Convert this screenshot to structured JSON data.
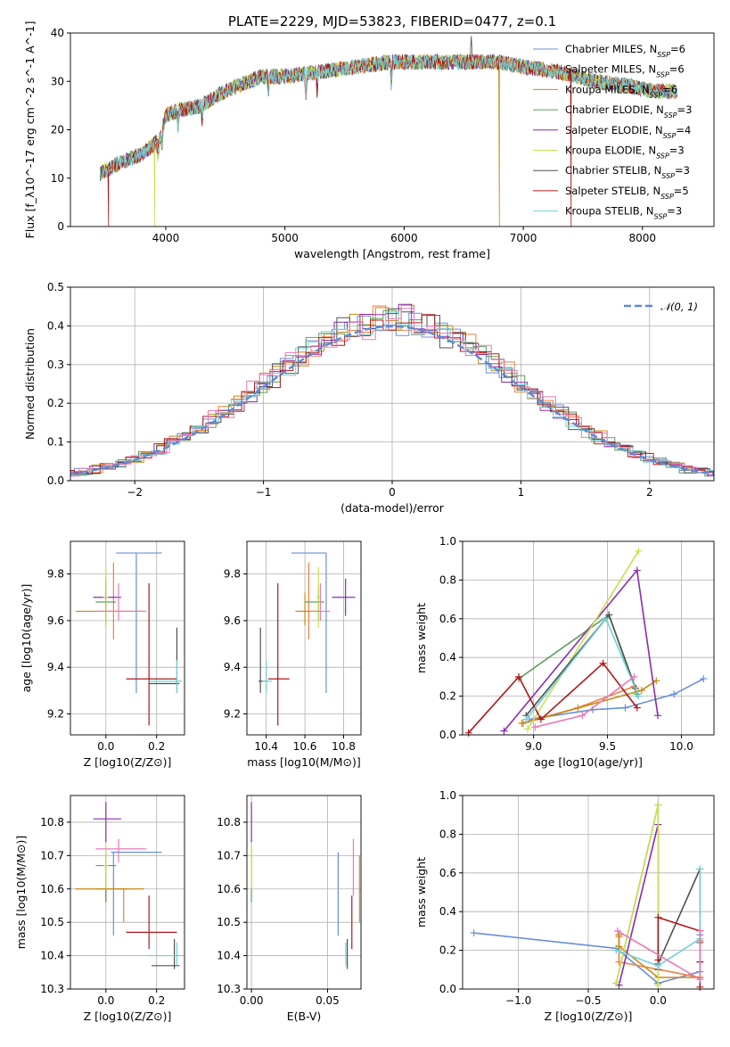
{
  "title": "PLATE=2229, MJD=53823, FIBERID=0477, z=0.1",
  "legend": [
    {
      "name": "Chabrier MILES, N_SSP=6",
      "color": "#6a8fd8"
    },
    {
      "name": "Salpeter MILES, N_SSP=6",
      "color": "#f07f3c"
    },
    {
      "name": "Kroupa MILES, N_SSP=6",
      "color": "#c88a14"
    },
    {
      "name": "Chabrier ELODIE, N_SSP=3",
      "color": "#5aa05a"
    },
    {
      "name": "Salpeter ELODIE, N_SSP=4",
      "color": "#8a2bb0"
    },
    {
      "name": "Kroupa ELODIE, N_SSP=3",
      "color": "#c8e050"
    },
    {
      "name": "Chabrier STELIB, N_SSP=3",
      "color": "#505050"
    },
    {
      "name": "Salpeter STELIB, N_SSP=5",
      "color": "#b01818"
    },
    {
      "name": "Kroupa STELIB, N_SSP=3",
      "color": "#70d0d8"
    }
  ],
  "chart_data": [
    {
      "id": "spectrum",
      "type": "line",
      "xlabel": "wavelength [Angstrom, rest frame]",
      "ylabel": "Flux [f_λ10^-17 erg cm^-2 s^-1 A^-1]",
      "xlim": [
        3200,
        8600
      ],
      "ylim": [
        0,
        40
      ],
      "xticks": [
        4000,
        5000,
        6000,
        7000,
        8000
      ],
      "yticks": [
        0,
        10,
        20,
        30,
        40
      ],
      "continuum": [
        [
          3450,
          11
        ],
        [
          3600,
          13
        ],
        [
          3800,
          15
        ],
        [
          3950,
          18
        ],
        [
          4000,
          23
        ],
        [
          4100,
          24
        ],
        [
          4300,
          25
        ],
        [
          4500,
          28
        ],
        [
          4800,
          31
        ],
        [
          5000,
          31
        ],
        [
          5300,
          32
        ],
        [
          5600,
          33
        ],
        [
          5900,
          34
        ],
        [
          6200,
          34
        ],
        [
          6500,
          34
        ],
        [
          6800,
          34
        ],
        [
          7000,
          33
        ],
        [
          7300,
          32
        ],
        [
          7600,
          30
        ],
        [
          7900,
          29
        ],
        [
          8100,
          28
        ],
        [
          8300,
          28
        ]
      ],
      "absorption_lines": [
        3934,
        3969,
        4102,
        4304,
        4861,
        5175,
        5270,
        5893
      ],
      "emission_lines": [
        [
          6563,
          40
        ],
        [
          6584,
          35
        ]
      ],
      "edge_drops": [
        {
          "series": 7,
          "x": 3520
        },
        {
          "series": 5,
          "x": 3910
        },
        {
          "series": 2,
          "x": 6800
        },
        {
          "series": 7,
          "x": 7400
        }
      ],
      "legend_placement": "right"
    },
    {
      "id": "residuals",
      "type": "histogram",
      "xlabel": "(data-model)/error",
      "ylabel": "Normed distribution",
      "xlim": [
        -2.5,
        2.5
      ],
      "ylim": [
        0,
        0.5
      ],
      "xticks": [
        -2,
        -1,
        0,
        1,
        2
      ],
      "yticks": [
        0.0,
        0.1,
        0.2,
        0.3,
        0.4,
        0.5
      ],
      "bin_width": 0.1,
      "reference_curve": "N(0,1)",
      "reference_label": "𝒩(0, 1)",
      "reference_color": "#5b8ad8",
      "legend_placement": "top-right"
    },
    {
      "id": "age_vs_Z",
      "type": "scatter",
      "xlabel": "Z [log10(Z/Z⊙)]",
      "ylabel": "age [log10(age/yr)]",
      "xlim": [
        -0.14,
        0.31
      ],
      "ylim": [
        9.11,
        9.94
      ],
      "xticks": [
        0.0,
        0.2
      ],
      "yticks": [
        9.2,
        9.4,
        9.6,
        9.8
      ],
      "points": [
        {
          "s": 0,
          "x": 0.12,
          "y": 9.89,
          "xe": [
            0.04,
            0.22
          ],
          "ye": [
            9.29,
            9.89
          ]
        },
        {
          "s": 1,
          "x": 0.03,
          "y": 9.64,
          "xe": [
            -0.04,
            0.14
          ],
          "ye": [
            9.52,
            9.85
          ]
        },
        {
          "s": 2,
          "x": 0.0,
          "y": 9.64,
          "xe": [
            -0.12,
            0.15
          ],
          "ye": [
            9.58,
            9.72
          ]
        },
        {
          "s": 3,
          "x": 0.0,
          "y": 9.68,
          "xe": [
            -0.04,
            0.04
          ],
          "ye": [
            9.6,
            9.74
          ]
        },
        {
          "s": 4,
          "x": 0.0,
          "y": 9.7,
          "xe": [
            -0.05,
            0.06
          ],
          "ye": [
            9.62,
            9.78
          ]
        },
        {
          "s": 5,
          "x": 0.0,
          "y": 9.7,
          "xe": [
            -0.01,
            0.01
          ],
          "ye": [
            9.57,
            9.83
          ]
        },
        {
          "s": 6,
          "x": 0.28,
          "y": 9.33,
          "xe": [
            0.17,
            0.29
          ],
          "ye": [
            9.29,
            9.57
          ]
        },
        {
          "s": 7,
          "x": 0.17,
          "y": 9.35,
          "xe": [
            0.08,
            0.28
          ],
          "ye": [
            9.15,
            9.76
          ]
        },
        {
          "s": 8,
          "x": 0.28,
          "y": 9.34,
          "xe": [
            0.17,
            0.3
          ],
          "ye": [
            9.29,
            9.43
          ]
        },
        {
          "s": 9,
          "x": 0.05,
          "y": 9.64,
          "xe": [
            -0.04,
            0.16
          ],
          "ye": [
            9.6,
            9.76
          ]
        }
      ]
    },
    {
      "id": "age_vs_mass",
      "type": "scatter",
      "xlabel": "mass [log10(M/M⊙)]",
      "ylabel": "",
      "xlim": [
        10.3,
        10.89
      ],
      "ylim": [
        9.11,
        9.94
      ],
      "xticks": [
        10.4,
        10.6,
        10.8
      ],
      "yticks": [
        9.2,
        9.4,
        9.6,
        9.8
      ],
      "points": [
        {
          "s": 0,
          "x": 10.71,
          "y": 9.89,
          "xe": [
            10.53,
            10.71
          ],
          "ye": [
            9.29,
            9.89
          ]
        },
        {
          "s": 1,
          "x": 10.62,
          "y": 9.64,
          "xe": [
            10.55,
            10.68
          ],
          "ye": [
            9.52,
            9.85
          ]
        },
        {
          "s": 2,
          "x": 10.6,
          "y": 9.64,
          "xe": [
            10.56,
            10.67
          ],
          "ye": [
            9.58,
            9.72
          ]
        },
        {
          "s": 3,
          "x": 10.67,
          "y": 9.68,
          "xe": [
            10.6,
            10.7
          ],
          "ye": [
            9.6,
            9.74
          ]
        },
        {
          "s": 4,
          "x": 10.81,
          "y": 9.7,
          "xe": [
            10.74,
            10.86
          ],
          "ye": [
            9.62,
            9.78
          ]
        },
        {
          "s": 5,
          "x": 10.67,
          "y": 9.7,
          "xe": [
            10.66,
            10.68
          ],
          "ye": [
            9.57,
            9.83
          ]
        },
        {
          "s": 6,
          "x": 10.37,
          "y": 9.34,
          "xe": [
            10.36,
            10.41
          ],
          "ye": [
            9.29,
            9.57
          ]
        },
        {
          "s": 7,
          "x": 10.46,
          "y": 9.35,
          "xe": [
            10.41,
            10.52
          ],
          "ye": [
            9.15,
            9.76
          ]
        },
        {
          "s": 8,
          "x": 10.4,
          "y": 9.34,
          "xe": [
            10.38,
            10.43
          ],
          "ye": [
            9.29,
            9.43
          ]
        },
        {
          "s": 9,
          "x": 10.68,
          "y": 9.64,
          "xe": [
            10.64,
            10.73
          ],
          "ye": [
            9.6,
            9.76
          ]
        }
      ]
    },
    {
      "id": "weight_vs_age",
      "type": "line",
      "xlabel": "age [log10(age/yr)]",
      "ylabel": "mass weight",
      "xlim": [
        8.52,
        10.22
      ],
      "ylim": [
        0,
        1
      ],
      "xticks": [
        9.0,
        9.5,
        10.0
      ],
      "yticks": [
        0.0,
        0.2,
        0.4,
        0.6,
        0.8,
        1.0
      ],
      "series": [
        {
          "s": 0,
          "x": [
            8.97,
            9.4,
            9.62,
            9.95,
            10.15
          ],
          "y": [
            0.08,
            0.13,
            0.14,
            0.21,
            0.29
          ]
        },
        {
          "s": 1,
          "x": 8.92,
          "y": 0,
          "xs": [
            8.92,
            9.3,
            9.68
          ],
          "ys": [
            0.06,
            0.14,
            0.25
          ]
        },
        {
          "s": 2,
          "x": [
            8.93,
            9.73,
            9.83
          ],
          "y": [
            0.06,
            0.23,
            0.28
          ]
        },
        {
          "s": 3,
          "x": [
            8.9,
            9.51,
            9.7
          ],
          "y": [
            0.29,
            0.62,
            0.21
          ]
        },
        {
          "s": 4,
          "x": [
            8.8,
            9.7,
            9.84
          ],
          "y": [
            0.02,
            0.85,
            0.1
          ]
        },
        {
          "s": 5,
          "x": [
            8.96,
            9.71
          ],
          "y": [
            0.03,
            0.95
          ]
        },
        {
          "s": 6,
          "x": [
            8.95,
            9.51,
            9.69
          ],
          "y": [
            0.1,
            0.62,
            0.24
          ]
        },
        {
          "s": 7,
          "x": [
            8.56,
            8.9,
            9.05,
            9.47,
            9.7
          ],
          "y": [
            0.01,
            0.3,
            0.08,
            0.37,
            0.14
          ]
        },
        {
          "s": 8,
          "x": [
            8.95,
            9.49,
            9.71
          ],
          "y": [
            0.08,
            0.6,
            0.2
          ]
        },
        {
          "s": 9,
          "x": [
            9.01,
            9.33,
            9.68
          ],
          "y": [
            0.04,
            0.1,
            0.3
          ]
        }
      ]
    },
    {
      "id": "mass_vs_Z",
      "type": "scatter",
      "xlabel": "Z [log10(Z/Z⊙)]",
      "ylabel": "mass [log10(M/M⊙)]",
      "xlim": [
        -0.14,
        0.31
      ],
      "ylim": [
        10.3,
        10.88
      ],
      "xticks": [
        0.0,
        0.2
      ],
      "yticks": [
        10.3,
        10.4,
        10.5,
        10.6,
        10.7,
        10.8
      ],
      "points": [
        {
          "s": 0,
          "x": 0.03,
          "y": 10.71,
          "xe": [
            0.02,
            0.22
          ],
          "ye": [
            10.46,
            10.71
          ]
        },
        {
          "s": 1,
          "x": 0.07,
          "y": 10.6,
          "xe": [
            -0.04,
            0.09
          ],
          "ye": [
            10.5,
            10.6
          ]
        },
        {
          "s": 2,
          "x": 0.0,
          "y": 10.6,
          "xe": [
            -0.12,
            0.15
          ],
          "ye": [
            10.56,
            10.64
          ]
        },
        {
          "s": 3,
          "x": 0.0,
          "y": 10.67,
          "xe": [
            -0.04,
            0.04
          ],
          "ye": [
            10.56,
            10.71
          ]
        },
        {
          "s": 4,
          "x": 0.0,
          "y": 10.81,
          "xe": [
            -0.05,
            0.06
          ],
          "ye": [
            10.74,
            10.86
          ]
        },
        {
          "s": 5,
          "x": 0.0,
          "y": 10.67,
          "xe": [
            -0.01,
            0.01
          ],
          "ye": [
            10.6,
            10.73
          ]
        },
        {
          "s": 6,
          "x": 0.27,
          "y": 10.37,
          "xe": [
            0.18,
            0.29
          ],
          "ye": [
            10.36,
            10.45
          ]
        },
        {
          "s": 7,
          "x": 0.17,
          "y": 10.47,
          "xe": [
            0.08,
            0.28
          ],
          "ye": [
            10.42,
            10.58
          ]
        },
        {
          "s": 8,
          "x": 0.28,
          "y": 10.4,
          "xe": [
            0.17,
            0.3
          ],
          "ye": [
            10.37,
            10.44
          ]
        },
        {
          "s": 9,
          "x": 0.05,
          "y": 10.72,
          "xe": [
            -0.04,
            0.16
          ],
          "ye": [
            10.68,
            10.75
          ]
        }
      ]
    },
    {
      "id": "mass_vs_EBV",
      "type": "scatter",
      "xlabel": "E(B-V)",
      "ylabel": "",
      "xlim": [
        -0.003,
        0.072
      ],
      "ylim": [
        10.3,
        10.88
      ],
      "xticks": [
        0.0,
        0.05
      ],
      "yticks": [
        10.3,
        10.4,
        10.5,
        10.6,
        10.7,
        10.8
      ],
      "ticklabels_x": [
        "0.00",
        "0.05"
      ],
      "points": [
        {
          "s": 0,
          "x": 0.057,
          "y": 10.58,
          "ye": [
            10.46,
            10.71
          ]
        },
        {
          "s": 1,
          "x": 0.071,
          "y": 10.6,
          "ye": [
            10.5,
            10.7
          ]
        },
        {
          "s": 3,
          "x": 0.0,
          "y": 10.62,
          "ye": [
            10.56,
            10.73
          ]
        },
        {
          "s": 4,
          "x": 0.0,
          "y": 10.81,
          "ye": [
            10.74,
            10.86
          ]
        },
        {
          "s": 5,
          "x": 0.0,
          "y": 10.66,
          "ye": [
            10.6,
            10.73
          ]
        },
        {
          "s": 6,
          "x": 0.063,
          "y": 10.4,
          "ye": [
            10.36,
            10.45
          ]
        },
        {
          "s": 7,
          "x": 0.066,
          "y": 10.5,
          "ye": [
            10.42,
            10.58
          ]
        },
        {
          "s": 8,
          "x": 0.062,
          "y": 10.4,
          "ye": [
            10.37,
            10.44
          ]
        },
        {
          "s": 9,
          "x": 0.067,
          "y": 10.66,
          "ye": [
            10.58,
            10.75
          ]
        }
      ]
    },
    {
      "id": "weight_vs_Z",
      "type": "line",
      "xlabel": "Z [log10(Z/Z⊙)]",
      "ylabel": "mass weight",
      "xlim": [
        -1.4,
        0.4
      ],
      "ylim": [
        0,
        1
      ],
      "xticks": [
        -1.0,
        -0.5,
        0.0
      ],
      "yticks": [
        0.0,
        0.2,
        0.4,
        0.6,
        0.8,
        1.0
      ],
      "series": [
        {
          "s": 0,
          "x": [
            -1.32,
            -0.3,
            0.0,
            0.3,
            0.3
          ],
          "y": [
            0.29,
            0.21,
            0.03,
            0.09,
            0.28
          ]
        },
        {
          "s": 1,
          "x": [
            -0.28,
            -0.28,
            0.3,
            0.3
          ],
          "y": [
            0.27,
            0.14,
            0.06,
            0.25
          ]
        },
        {
          "s": 2,
          "x": [
            -0.28,
            -0.28,
            0.0,
            0.3
          ],
          "y": [
            0.28,
            0.22,
            0.06,
            0.06
          ]
        },
        {
          "s": 3,
          "x": [
            -0.3,
            0.0,
            0.0
          ],
          "y": [
            0.03,
            0.95,
            0.03
          ]
        },
        {
          "s": 4,
          "x": [
            -0.28,
            0.0,
            0.0
          ],
          "y": [
            0.02,
            0.85,
            0.1
          ]
        },
        {
          "s": 5,
          "x": [
            -0.3,
            0.0,
            0.0
          ],
          "y": [
            0.03,
            0.95,
            0.02
          ]
        },
        {
          "s": 6,
          "x": [
            0.0,
            0.3,
            0.3
          ],
          "y": [
            0.13,
            0.62,
            0.24
          ]
        },
        {
          "s": 7,
          "x": [
            0.0,
            0.0,
            0.3,
            0.3,
            0.3
          ],
          "y": [
            0.15,
            0.37,
            0.3,
            0.14,
            0.01
          ]
        },
        {
          "s": 8,
          "x": [
            -0.3,
            0.0,
            0.3,
            0.3
          ],
          "y": [
            0.2,
            0.12,
            0.26,
            0.62
          ]
        },
        {
          "s": 9,
          "x": [
            -0.29,
            0.3,
            0.3
          ],
          "y": [
            0.3,
            0.05,
            0.3
          ]
        }
      ]
    }
  ]
}
